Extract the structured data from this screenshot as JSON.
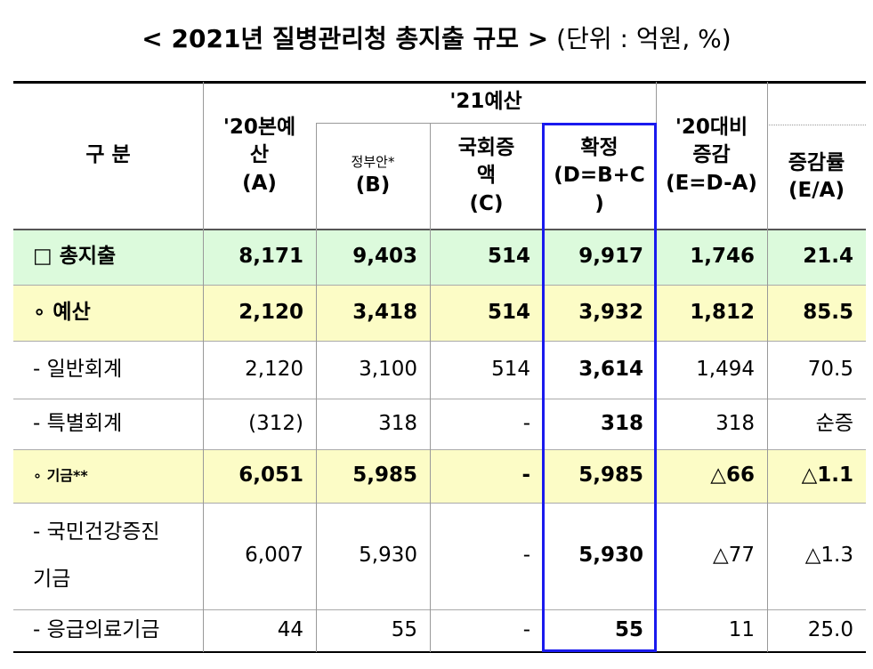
{
  "title": "< 2021년 질병관리청 총지출 규모 >",
  "unit": "(단위 : 억원, %)",
  "header": {
    "category": "구 분",
    "prev_budget": [
      "'20본예",
      "산",
      "(A)"
    ],
    "budget_2021": "'21예산",
    "gov_proposal": [
      "정부안*",
      "(B)"
    ],
    "assembly_increase": [
      "국회증",
      "액",
      "(C)"
    ],
    "confirmed": [
      "확정",
      "(D=B+C",
      ")"
    ],
    "change": [
      "'20대비",
      "증감",
      "(E=D-A)"
    ],
    "change_rate": [
      "증감률",
      "(E/A)"
    ]
  },
  "rows": [
    {
      "label": [
        "□ 총지출"
      ],
      "values": [
        "8,171",
        "9,403",
        "514",
        "9,917",
        "1,746",
        "21.4"
      ]
    },
    {
      "label": [
        "∘ 예산"
      ],
      "values": [
        "2,120",
        "3,418",
        "514",
        "3,932",
        "1,812",
        "85.5"
      ]
    },
    {
      "label": [
        "- 일반회계"
      ],
      "values": [
        "2,120",
        "3,100",
        "514",
        "3,614",
        "1,494",
        "70.5"
      ]
    },
    {
      "label": [
        "- 특별회계"
      ],
      "values": [
        "(312)",
        "318",
        "-",
        "318",
        "318",
        "순증"
      ]
    },
    {
      "label": [
        "∘ 기금**"
      ],
      "values": [
        "6,051",
        "5,985",
        "-",
        "5,985",
        "△66",
        "△1.1"
      ]
    },
    {
      "label": [
        "-  국민건강증진",
        "기금"
      ],
      "values": [
        "6,007",
        "5,930",
        "-",
        "5,930",
        "△77",
        "△1.3"
      ]
    },
    {
      "label": [
        "- 응급의료기금"
      ],
      "values": [
        "44",
        "55",
        "-",
        "55",
        "11",
        "25.0"
      ]
    }
  ]
}
